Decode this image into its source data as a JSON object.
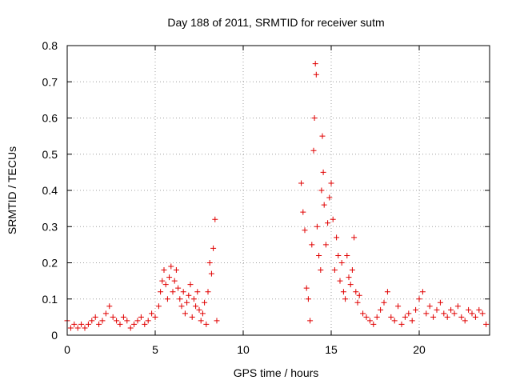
{
  "chart_data": {
    "type": "scatter",
    "title": "Day 188 of 2011, SRMTID for receiver sutm",
    "xlabel": "GPS time / hours",
    "ylabel": "SRMTID / TECUs",
    "xlim": [
      0,
      24
    ],
    "ylim": [
      0,
      0.8
    ],
    "xticks": [
      0,
      5,
      10,
      15,
      20
    ],
    "xtick_labels": [
      "0",
      "5",
      "10",
      "15",
      "20"
    ],
    "yticks": [
      0,
      0.1,
      0.2,
      0.3,
      0.4,
      0.5,
      0.6,
      0.7,
      0.8
    ],
    "ytick_labels": [
      "0",
      "0.1",
      "0.2",
      "0.3",
      "0.4",
      "0.5",
      "0.6",
      "0.7",
      "0.8"
    ],
    "grid": true,
    "marker": "+",
    "color": "#e00000",
    "series": [
      {
        "name": "SRMTID",
        "x": [
          0.0,
          0.2,
          0.4,
          0.6,
          0.8,
          1.0,
          1.2,
          1.4,
          1.6,
          1.8,
          2.0,
          2.2,
          2.4,
          2.6,
          2.8,
          3.0,
          3.2,
          3.4,
          3.6,
          3.8,
          4.0,
          4.2,
          4.4,
          4.6,
          4.8,
          5.0,
          5.2,
          5.3,
          5.4,
          5.5,
          5.6,
          5.7,
          5.8,
          5.9,
          6.0,
          6.1,
          6.2,
          6.3,
          6.4,
          6.5,
          6.6,
          6.7,
          6.8,
          6.9,
          7.0,
          7.1,
          7.2,
          7.3,
          7.4,
          7.5,
          7.6,
          7.7,
          7.8,
          7.9,
          8.0,
          8.1,
          8.2,
          8.3,
          8.4,
          8.5,
          13.3,
          13.4,
          13.5,
          13.6,
          13.7,
          13.8,
          13.9,
          14.0,
          14.05,
          14.1,
          14.15,
          14.2,
          14.3,
          14.4,
          14.45,
          14.5,
          14.55,
          14.6,
          14.7,
          14.8,
          14.9,
          15.0,
          15.1,
          15.2,
          15.3,
          15.4,
          15.5,
          15.6,
          15.7,
          15.8,
          15.9,
          16.0,
          16.1,
          16.2,
          16.3,
          16.4,
          16.5,
          16.6,
          16.8,
          17.0,
          17.2,
          17.4,
          17.6,
          17.8,
          18.0,
          18.2,
          18.4,
          18.6,
          18.8,
          19.0,
          19.2,
          19.4,
          19.6,
          19.8,
          20.0,
          20.2,
          20.4,
          20.6,
          20.8,
          21.0,
          21.2,
          21.4,
          21.6,
          21.8,
          22.0,
          22.2,
          22.4,
          22.6,
          22.8,
          23.0,
          23.2,
          23.4,
          23.6,
          23.8
        ],
        "y": [
          0.04,
          0.02,
          0.03,
          0.02,
          0.03,
          0.02,
          0.03,
          0.04,
          0.05,
          0.03,
          0.04,
          0.06,
          0.08,
          0.05,
          0.04,
          0.03,
          0.05,
          0.04,
          0.02,
          0.03,
          0.04,
          0.05,
          0.03,
          0.04,
          0.06,
          0.05,
          0.08,
          0.12,
          0.15,
          0.18,
          0.14,
          0.1,
          0.16,
          0.19,
          0.12,
          0.15,
          0.18,
          0.13,
          0.1,
          0.08,
          0.12,
          0.06,
          0.09,
          0.11,
          0.14,
          0.05,
          0.1,
          0.08,
          0.12,
          0.07,
          0.04,
          0.06,
          0.09,
          0.03,
          0.12,
          0.2,
          0.17,
          0.24,
          0.32,
          0.04,
          0.42,
          0.34,
          0.29,
          0.13,
          0.1,
          0.04,
          0.25,
          0.51,
          0.6,
          0.75,
          0.72,
          0.3,
          0.22,
          0.18,
          0.4,
          0.55,
          0.45,
          0.36,
          0.25,
          0.31,
          0.38,
          0.42,
          0.32,
          0.18,
          0.27,
          0.22,
          0.15,
          0.2,
          0.12,
          0.1,
          0.22,
          0.16,
          0.14,
          0.18,
          0.27,
          0.12,
          0.09,
          0.11,
          0.06,
          0.05,
          0.04,
          0.03,
          0.05,
          0.07,
          0.09,
          0.12,
          0.05,
          0.04,
          0.08,
          0.03,
          0.05,
          0.06,
          0.04,
          0.07,
          0.1,
          0.12,
          0.06,
          0.08,
          0.05,
          0.07,
          0.09,
          0.06,
          0.05,
          0.07,
          0.06,
          0.08,
          0.05,
          0.04,
          0.07,
          0.06,
          0.05,
          0.07,
          0.06,
          0.03
        ]
      }
    ]
  }
}
